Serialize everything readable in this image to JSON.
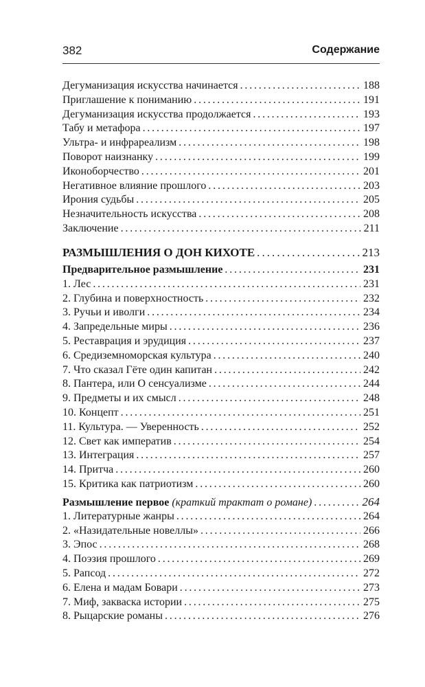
{
  "header": {
    "page_number": "382",
    "title": "Содержание"
  },
  "groups": [
    {
      "entries": [
        {
          "title": "Дегуманизация искусства начинается",
          "page": "188"
        },
        {
          "title": "Приглашение к пониманию",
          "page": "191"
        },
        {
          "title": "Дегуманизация искусства продолжается",
          "page": "193"
        },
        {
          "title": "Табу и метафора",
          "page": "197"
        },
        {
          "title": "Ультра- и инфрареализм",
          "page": "198"
        },
        {
          "title": "Поворот наизнанку",
          "page": "199"
        },
        {
          "title": "Иконоборчество",
          "page": "201"
        },
        {
          "title": "Негативное влияние прошлого",
          "page": "203"
        },
        {
          "title": "Ирония судьбы",
          "page": "205"
        },
        {
          "title": "Незначительность искусства",
          "page": "208"
        },
        {
          "title": "Заключение",
          "page": "211"
        }
      ]
    },
    {
      "entries": [
        {
          "title": "РАЗМЫШЛЕНИЯ О ДОН КИХОТЕ",
          "page": "213",
          "style": "major"
        }
      ]
    },
    {
      "entries": [
        {
          "title": "Предварительное размышление",
          "page": "231",
          "style": "bold-title"
        },
        {
          "title": "1. Лес",
          "page": "231"
        },
        {
          "title": "2. Глубина и поверхностность",
          "page": "232"
        },
        {
          "title": "3. Ручьи и иволги",
          "page": "234"
        },
        {
          "title": "4. Запредельные миры",
          "page": "236"
        },
        {
          "title": "5. Реставрация и эрудиция",
          "page": "237"
        },
        {
          "title": "6. Средиземноморская культура",
          "page": "240"
        },
        {
          "title": "7. Что сказал Гёте один капитан",
          "page": "242"
        },
        {
          "title": "8. Пантера, или О сенсуализме",
          "page": "244"
        },
        {
          "title": "9. Предметы и их смысл",
          "page": "248"
        },
        {
          "title": "10. Концепт",
          "page": "251"
        },
        {
          "title": "11. Культура. — Уверенность",
          "page": "252"
        },
        {
          "title": "12. Свет как императив",
          "page": "254"
        },
        {
          "title": "13. Интеграция",
          "page": "257"
        },
        {
          "title": "14. Притча",
          "page": "260"
        },
        {
          "title": "15. Критика как патриотизм",
          "page": "260"
        }
      ]
    },
    {
      "entries": [
        {
          "title": "Размышление первое",
          "subtitle": "(краткий трактат о романе)",
          "page": "264",
          "style": "bold-italic-page"
        },
        {
          "title": "1. Литературные жанры",
          "page": "264"
        },
        {
          "title": "2. «Назидательные новеллы»",
          "page": "266"
        },
        {
          "title": "3. Эпос",
          "page": "268"
        },
        {
          "title": "4. Поэзия прошлого",
          "page": "269"
        },
        {
          "title": "5. Рапсод",
          "page": "272"
        },
        {
          "title": "6. Елена и мадам Бовари",
          "page": "273"
        },
        {
          "title": "7. Миф, закваска истории",
          "page": "275"
        },
        {
          "title": "8. Рыцарские романы",
          "page": "276"
        }
      ]
    }
  ]
}
